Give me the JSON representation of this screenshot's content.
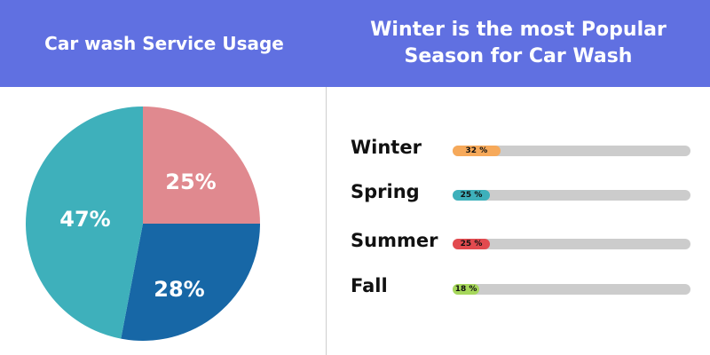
{
  "header": {
    "left_title": "Car wash Service Usage",
    "right_title_line1": "Winter is the most Popular",
    "right_title_line2": "Season for Car Wash"
  },
  "chart_data": [
    {
      "type": "pie",
      "title": "Car wash Service Usage",
      "slices": [
        {
          "label": "25%",
          "value": 25,
          "color": "#e0898f"
        },
        {
          "label": "28%",
          "value": 28,
          "color": "#1767a6"
        },
        {
          "label": "47%",
          "value": 47,
          "color": "#3eb0bb"
        }
      ]
    },
    {
      "type": "bar",
      "title": "Winter is the most Popular Season for Car Wash",
      "categories": [
        "Winter",
        "Spring",
        "Summer",
        "Fall"
      ],
      "values": [
        32,
        25,
        25,
        18
      ],
      "value_labels": [
        "32 %",
        "25 %",
        "25 %",
        "18 %"
      ],
      "colors": [
        "#f6a95a",
        "#3eb0bb",
        "#e24a4f",
        "#a6d75b"
      ],
      "track_color": "#cccccc",
      "orientation": "horizontal"
    }
  ]
}
